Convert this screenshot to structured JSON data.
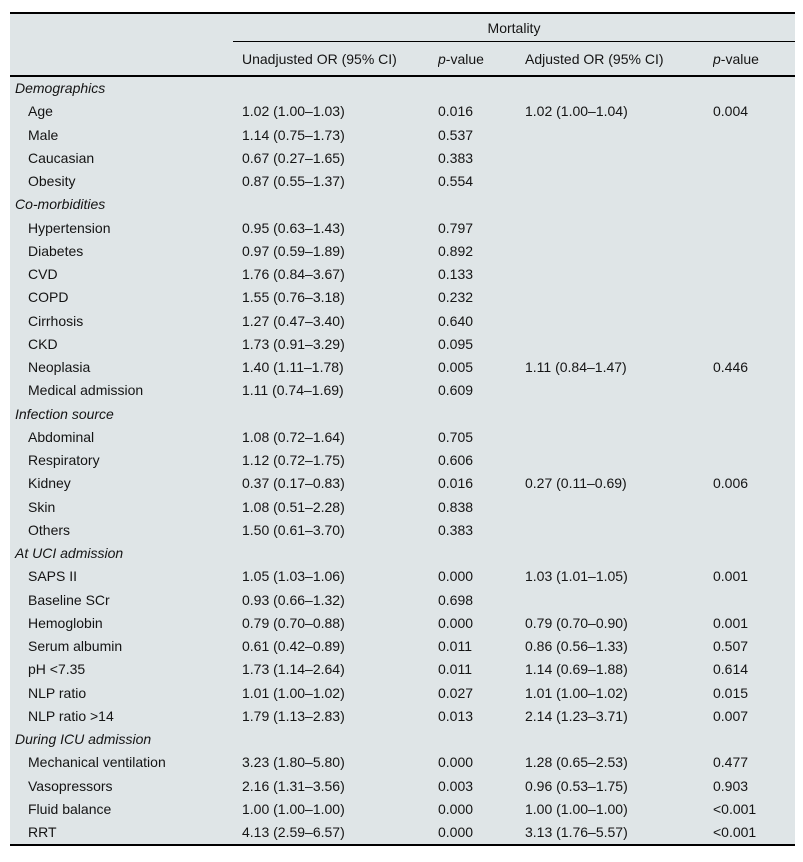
{
  "table": {
    "spanner": "Mortality",
    "columns": [
      {
        "label": "Unadjusted OR (95% CI)"
      },
      {
        "italic": "p",
        "rest": "-value"
      },
      {
        "label": "Adjusted OR (95% CI)"
      },
      {
        "italic": "p",
        "rest": "-value"
      }
    ],
    "sections": [
      {
        "label": "Demographics",
        "rows": [
          {
            "label": "Age",
            "unadjusted_or": "1.02 (1.00–1.03)",
            "p_value": "0.016",
            "adjusted_or": "1.02 (1.00–1.04)",
            "adj_p_value": "0.004"
          },
          {
            "label": "Male",
            "unadjusted_or": "1.14 (0.75–1.73)",
            "p_value": "0.537",
            "adjusted_or": "",
            "adj_p_value": ""
          },
          {
            "label": "Caucasian",
            "unadjusted_or": "0.67 (0.27–1.65)",
            "p_value": "0.383",
            "adjusted_or": "",
            "adj_p_value": ""
          },
          {
            "label": "Obesity",
            "unadjusted_or": "0.87 (0.55–1.37)",
            "p_value": "0.554",
            "adjusted_or": "",
            "adj_p_value": ""
          }
        ]
      },
      {
        "label": "Co-morbidities",
        "rows": [
          {
            "label": "Hypertension",
            "unadjusted_or": "0.95 (0.63–1.43)",
            "p_value": "0.797",
            "adjusted_or": "",
            "adj_p_value": ""
          },
          {
            "label": "Diabetes",
            "unadjusted_or": "0.97 (0.59–1.89)",
            "p_value": "0.892",
            "adjusted_or": "",
            "adj_p_value": ""
          },
          {
            "label": "CVD",
            "unadjusted_or": "1.76 (0.84–3.67)",
            "p_value": "0.133",
            "adjusted_or": "",
            "adj_p_value": ""
          },
          {
            "label": "COPD",
            "unadjusted_or": "1.55 (0.76–3.18)",
            "p_value": "0.232",
            "adjusted_or": "",
            "adj_p_value": ""
          },
          {
            "label": "Cirrhosis",
            "unadjusted_or": "1.27 (0.47–3.40)",
            "p_value": "0.640",
            "adjusted_or": "",
            "adj_p_value": ""
          },
          {
            "label": "CKD",
            "unadjusted_or": "1.73 (0.91–3.29)",
            "p_value": "0.095",
            "adjusted_or": "",
            "adj_p_value": ""
          },
          {
            "label": "Neoplasia",
            "unadjusted_or": "1.40 (1.11–1.78)",
            "p_value": "0.005",
            "adjusted_or": "1.11 (0.84–1.47)",
            "adj_p_value": "0.446"
          },
          {
            "label": "Medical admission",
            "unadjusted_or": "1.11 (0.74–1.69)",
            "p_value": "0.609",
            "adjusted_or": "",
            "adj_p_value": ""
          }
        ]
      },
      {
        "label": "Infection source",
        "rows": [
          {
            "label": "Abdominal",
            "unadjusted_or": "1.08 (0.72–1.64)",
            "p_value": "0.705",
            "adjusted_or": "",
            "adj_p_value": ""
          },
          {
            "label": "Respiratory",
            "unadjusted_or": "1.12 (0.72–1.75)",
            "p_value": "0.606",
            "adjusted_or": "",
            "adj_p_value": ""
          },
          {
            "label": "Kidney",
            "unadjusted_or": "0.37 (0.17–0.83)",
            "p_value": "0.016",
            "adjusted_or": "0.27 (0.11–0.69)",
            "adj_p_value": "0.006"
          },
          {
            "label": "Skin",
            "unadjusted_or": "1.08 (0.51–2.28)",
            "p_value": "0.838",
            "adjusted_or": "",
            "adj_p_value": ""
          },
          {
            "label": "Others",
            "unadjusted_or": "1.50 (0.61–3.70)",
            "p_value": "0.383",
            "adjusted_or": "",
            "adj_p_value": ""
          }
        ]
      },
      {
        "label": "At UCI admission",
        "rows": [
          {
            "label": "SAPS II",
            "unadjusted_or": "1.05 (1.03–1.06)",
            "p_value": "0.000",
            "adjusted_or": "1.03 (1.01–1.05)",
            "adj_p_value": "0.001"
          },
          {
            "label": "Baseline SCr",
            "unadjusted_or": "0.93 (0.66–1.32)",
            "p_value": "0.698",
            "adjusted_or": "",
            "adj_p_value": ""
          },
          {
            "label": "Hemoglobin",
            "unadjusted_or": "0.79 (0.70–0.88)",
            "p_value": "0.000",
            "adjusted_or": "0.79 (0.70–0.90)",
            "adj_p_value": "0.001"
          },
          {
            "label": "Serum albumin",
            "unadjusted_or": "0.61 (0.42–0.89)",
            "p_value": "0.011",
            "adjusted_or": "0.86 (0.56–1.33)",
            "adj_p_value": "0.507"
          },
          {
            "label": "pH <7.35",
            "unadjusted_or": "1.73 (1.14–2.64)",
            "p_value": "0.011",
            "adjusted_or": "1.14 (0.69–1.88)",
            "adj_p_value": "0.614"
          },
          {
            "label": "NLP ratio",
            "unadjusted_or": "1.01 (1.00–1.02)",
            "p_value": "0.027",
            "adjusted_or": "1.01 (1.00–1.02)",
            "adj_p_value": "0.015"
          },
          {
            "label": "NLP ratio >14",
            "unadjusted_or": "1.79 (1.13–2.83)",
            "p_value": "0.013",
            "adjusted_or": "2.14 (1.23–3.71)",
            "adj_p_value": "0.007"
          }
        ]
      },
      {
        "label": "During ICU admission",
        "rows": [
          {
            "label": "Mechanical ventilation",
            "unadjusted_or": "3.23 (1.80–5.80)",
            "p_value": "0.000",
            "adjusted_or": "1.28 (0.65–2.53)",
            "adj_p_value": "0.477"
          },
          {
            "label": "Vasopressors",
            "unadjusted_or": "2.16 (1.31–3.56)",
            "p_value": "0.003",
            "adjusted_or": "0.96 (0.53–1.75)",
            "adj_p_value": "0.903"
          },
          {
            "label": "Fluid balance",
            "unadjusted_or": "1.00 (1.00–1.00)",
            "p_value": "0.000",
            "adjusted_or": "1.00 (1.00–1.00)",
            "adj_p_value": "<0.001"
          },
          {
            "label": "RRT",
            "unadjusted_or": "4.13 (2.59–6.57)",
            "p_value": "0.000",
            "adjusted_or": "3.13 (1.76–5.57)",
            "adj_p_value": "<0.001"
          }
        ]
      }
    ]
  }
}
